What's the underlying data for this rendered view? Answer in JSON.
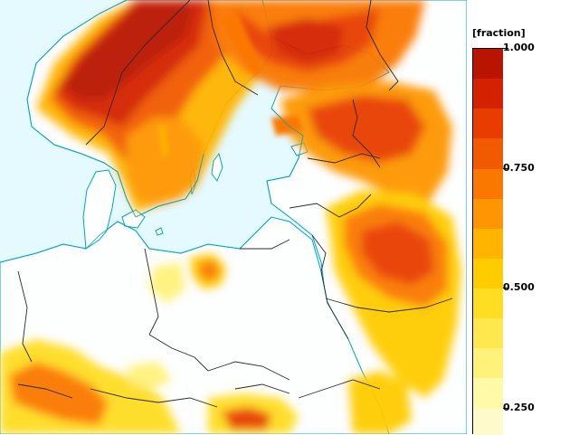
{
  "legend": {
    "unit": "[fraction]",
    "ticks": [
      {
        "label": "1.000",
        "value": 1.0
      },
      {
        "label": "0.750",
        "value": 0.75
      },
      {
        "label": "0.500",
        "value": 0.5
      },
      {
        "label": "0.250",
        "value": 0.25
      }
    ],
    "bands": [
      {
        "from": 0.9375,
        "to": 1.0,
        "color": "#b81400"
      },
      {
        "from": 0.875,
        "to": 0.9375,
        "color": "#d42200"
      },
      {
        "from": 0.8125,
        "to": 0.875,
        "color": "#e83c00"
      },
      {
        "from": 0.75,
        "to": 0.8125,
        "color": "#f25a00"
      },
      {
        "from": 0.6875,
        "to": 0.75,
        "color": "#fa7800"
      },
      {
        "from": 0.625,
        "to": 0.6875,
        "color": "#fd9600"
      },
      {
        "from": 0.5625,
        "to": 0.625,
        "color": "#ffb400"
      },
      {
        "from": 0.5,
        "to": 0.5625,
        "color": "#ffcc00"
      },
      {
        "from": 0.4375,
        "to": 0.5,
        "color": "#ffdd22"
      },
      {
        "from": 0.375,
        "to": 0.4375,
        "color": "#ffe84d"
      },
      {
        "from": 0.3125,
        "to": 0.375,
        "color": "#fff27a"
      },
      {
        "from": 0.25,
        "to": 0.3125,
        "color": "#fffaa8"
      },
      {
        "from": 0.0,
        "to": 0.25,
        "color": "#fffacc"
      }
    ]
  },
  "colors": {
    "ocean": "#e4faff",
    "land": "#fdfefe",
    "coastline": "#00a4c8",
    "border": "#2a2a2a"
  }
}
